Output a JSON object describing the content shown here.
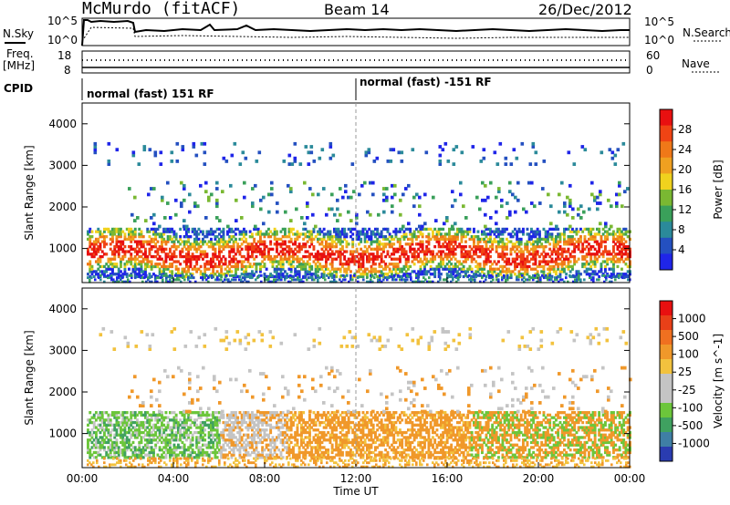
{
  "header": {
    "station": "McMurdo (fitACF)",
    "beam": "Beam 14",
    "date": "26/Dec/2012"
  },
  "panels": {
    "nsky_label": "N.Sky",
    "nsky_top_tick": "10^5",
    "nsky_bottom_tick": "10^0",
    "nsearch_label": "N.Search",
    "nsearch_top_tick": "10^5",
    "nsearch_bottom_tick": "10^0",
    "freq_label_1": "Freq.",
    "freq_label_2": "[MHz]",
    "freq_top_tick": "18",
    "freq_bottom_tick": "8",
    "nave_label": "Nave",
    "nave_top_tick": "60",
    "nave_bottom_tick": "0",
    "cpid_label": "CPID",
    "cpid_segments": [
      "normal (fast) 151 RF",
      "normal (fast) -151 RF"
    ]
  },
  "chart_data": [
    {
      "type": "heatmap",
      "name": "power",
      "ylabel": "Slant Range [km]",
      "yticks": [
        1000,
        2000,
        3000,
        4000
      ],
      "ylim": [
        180,
        4500
      ],
      "xlim": [
        0,
        24
      ],
      "colorbar": {
        "label": "Power [dB]",
        "ticks": [
          "4",
          "8",
          "12",
          "16",
          "20",
          "24",
          "28"
        ],
        "colors": [
          "#1f25e8",
          "#2450c0",
          "#2b8a9a",
          "#3aa05a",
          "#7ab832",
          "#f0d21e",
          "#f0a020",
          "#f07818",
          "#f04414",
          "#e81010"
        ]
      }
    },
    {
      "type": "heatmap",
      "name": "velocity",
      "ylabel": "Slant Range [km]",
      "yticks": [
        1000,
        2000,
        3000,
        4000
      ],
      "ylim": [
        180,
        4500
      ],
      "xlim": [
        0,
        24
      ],
      "xlabel": "Time UT",
      "xticks": [
        "00:00",
        "04:00",
        "08:00",
        "12:00",
        "16:00",
        "20:00",
        "00:00"
      ],
      "colorbar": {
        "label": "Velocity [m s^-1]",
        "ticks": [
          "1000",
          "500",
          "100",
          "25",
          "-25",
          "-100",
          "-500",
          "-1000"
        ],
        "colors": [
          "#2a3cb0",
          "#3f7fa5",
          "#3fa160",
          "#6cc63b",
          "#c4c4c4",
          "#c4c4c4",
          "#f2c23e",
          "#f0982a",
          "#f07020",
          "#e84018",
          "#e81010"
        ]
      }
    }
  ]
}
